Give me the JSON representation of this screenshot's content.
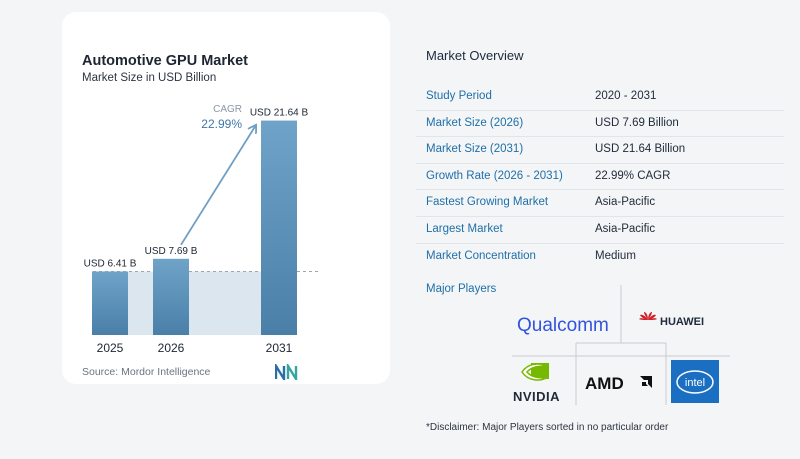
{
  "chart": {
    "title": "Automotive GPU Market",
    "subtitle": "Market Size in USD Billion",
    "source": "Source: Mordor Intelligence",
    "cagr_label": "CAGR",
    "cagr_value": "22.99%"
  },
  "chart_data": {
    "type": "bar",
    "categories": [
      "2025",
      "2026",
      "2031"
    ],
    "values": [
      6.41,
      7.69,
      21.64
    ],
    "value_labels": [
      "USD 6.41 B",
      "USD 7.69 B",
      "USD 21.64 B"
    ],
    "title": "Automotive GPU Market",
    "subtitle": "Market Size in USD Billion",
    "xlabel": "",
    "ylabel": "",
    "ylim": [
      0,
      22
    ],
    "grid": false,
    "colors": {
      "bar_top": "#6fa3c8",
      "bar_bottom": "#4a7fa8",
      "band": "#dbe6ef",
      "arrow": "#6f9ec2"
    }
  },
  "overview": {
    "title": "Market Overview",
    "rows": [
      {
        "key": "Study Period",
        "value": "2020 - 2031"
      },
      {
        "key": "Market Size (2026)",
        "value": "USD 7.69 Billion"
      },
      {
        "key": "Market Size (2031)",
        "value": "USD 21.64 Billion"
      },
      {
        "key": "Growth Rate (2026 - 2031)",
        "value": "22.99% CAGR"
      },
      {
        "key": "Fastest Growing Market",
        "value": "Asia-Pacific"
      },
      {
        "key": "Largest Market",
        "value": "Asia-Pacific"
      },
      {
        "key": "Market Concentration",
        "value": "Medium"
      }
    ],
    "players_title": "Major Players",
    "players": [
      "Qualcomm",
      "HUAWEI",
      "NVIDIA",
      "AMD",
      "intel"
    ],
    "disclaimer": "*Disclaimer: Major Players sorted in no particular order"
  }
}
